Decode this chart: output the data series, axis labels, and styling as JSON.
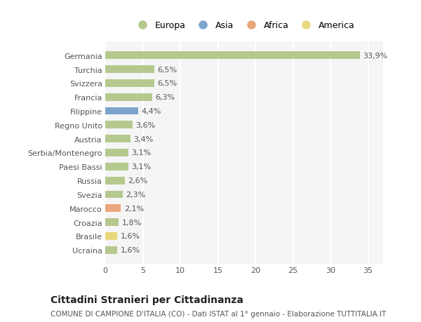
{
  "categories": [
    "Germania",
    "Turchia",
    "Svizzera",
    "Francia",
    "Filippine",
    "Regno Unito",
    "Austria",
    "Serbia/Montenegro",
    "Paesi Bassi",
    "Russia",
    "Svezia",
    "Marocco",
    "Croazia",
    "Brasile",
    "Ucraina"
  ],
  "values": [
    33.9,
    6.5,
    6.5,
    6.3,
    4.4,
    3.6,
    3.4,
    3.1,
    3.1,
    2.6,
    2.3,
    2.1,
    1.8,
    1.6,
    1.6
  ],
  "labels": [
    "33,9%",
    "6,5%",
    "6,5%",
    "6,3%",
    "4,4%",
    "3,6%",
    "3,4%",
    "3,1%",
    "3,1%",
    "2,6%",
    "2,3%",
    "2,1%",
    "1,8%",
    "1,6%",
    "1,6%"
  ],
  "continents": [
    "Europa",
    "Europa",
    "Europa",
    "Europa",
    "Asia",
    "Europa",
    "Europa",
    "Europa",
    "Europa",
    "Europa",
    "Europa",
    "Africa",
    "Europa",
    "America",
    "Europa"
  ],
  "colors": {
    "Europa": "#b5c98e",
    "Asia": "#7ba3cc",
    "Africa": "#e8a87c",
    "America": "#e8d87c"
  },
  "legend_order": [
    "Europa",
    "Asia",
    "Africa",
    "America"
  ],
  "title": "Cittadini Stranieri per Cittadinanza",
  "subtitle": "COMUNE DI CAMPIONE D'ITALIA (CO) - Dati ISTAT al 1° gennaio - Elaborazione TUTTITALIA.IT",
  "xlim": [
    0,
    37
  ],
  "xticks": [
    0,
    5,
    10,
    15,
    20,
    25,
    30,
    35
  ],
  "background_color": "#ffffff",
  "plot_bg_color": "#f5f5f5",
  "bar_height": 0.55,
  "grid_color": "#ffffff",
  "label_fontsize": 8,
  "tick_fontsize": 8,
  "title_fontsize": 10,
  "subtitle_fontsize": 7.5,
  "legend_fontsize": 9
}
